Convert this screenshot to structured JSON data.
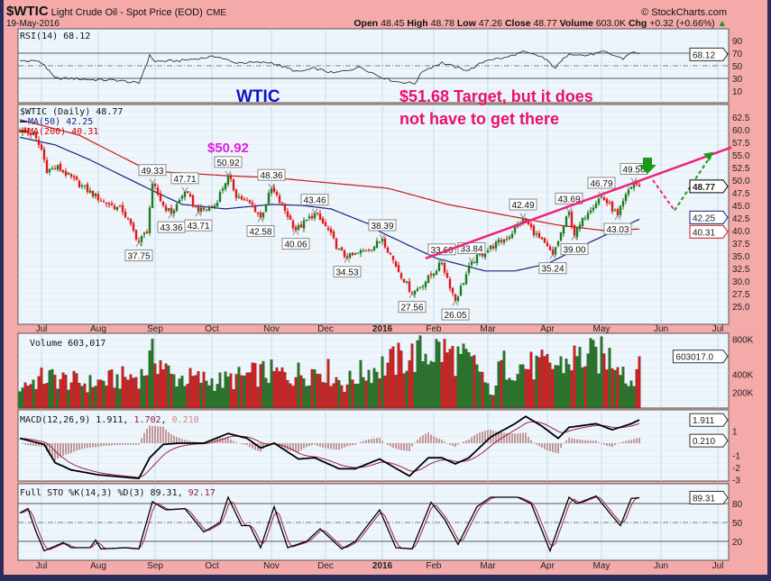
{
  "header": {
    "symbol": "$WTIC",
    "name": "Light Crude Oil - Spot Price (EOD)",
    "exchange": "CME",
    "date": "19-May-2016",
    "brand": "© StockCharts.com",
    "open_label": "Open",
    "open": "48.45",
    "high_label": "High",
    "high": "48.78",
    "low_label": "Low",
    "low": "47.26",
    "close_label": "Close",
    "close": "48.77",
    "volume_label": "Volume",
    "volume": "603.0K",
    "chg_label": "Chg",
    "chg": "+0.32 (+0.66%)",
    "chg_arrow": "▲"
  },
  "annotations": {
    "wtic": "WTIC",
    "target_line1": "$51.68 Target, but it does",
    "target_line2": "not have to get there",
    "peak": "$50.92",
    "colors": {
      "wtic": "#0a14c8",
      "target": "#e8106e",
      "peak": "#e020e0",
      "trendline": "#f0207a",
      "green_arrow": "#1a9a1a"
    }
  },
  "chart_data": {
    "type": "candlestick",
    "months": [
      {
        "label": "Jul",
        "i": 8
      },
      {
        "label": "Aug",
        "i": 29
      },
      {
        "label": "Sep",
        "i": 50
      },
      {
        "label": "Oct",
        "i": 71
      },
      {
        "label": "Nov",
        "i": 93
      },
      {
        "label": "Dec",
        "i": 113
      },
      {
        "label": "2016",
        "i": 134,
        "bold": true
      },
      {
        "label": "Feb",
        "i": 153
      },
      {
        "label": "Mar",
        "i": 173
      },
      {
        "label": "Apr",
        "i": 195
      },
      {
        "label": "May",
        "i": 215
      },
      {
        "label": "Jun",
        "i": 237
      },
      {
        "label": "Jul",
        "i": 258
      }
    ],
    "bars": 230,
    "rsi": {
      "label": "RSI(14) 68.12",
      "value": "68.12",
      "ticks": [
        "90",
        "70",
        "50",
        "30",
        "10"
      ],
      "points": [
        [
          0,
          58
        ],
        [
          6,
          58
        ],
        [
          9,
          52
        ],
        [
          11,
          40
        ],
        [
          13,
          30
        ],
        [
          19,
          30
        ],
        [
          26,
          28
        ],
        [
          36,
          27
        ],
        [
          44,
          22
        ],
        [
          48,
          66
        ],
        [
          50,
          57
        ],
        [
          59,
          58
        ],
        [
          73,
          65
        ],
        [
          79,
          55
        ],
        [
          93,
          55
        ],
        [
          103,
          40
        ],
        [
          109,
          46
        ],
        [
          116,
          38
        ],
        [
          126,
          48
        ],
        [
          133,
          33
        ],
        [
          139,
          25
        ],
        [
          146,
          22
        ],
        [
          149,
          42
        ],
        [
          156,
          55
        ],
        [
          163,
          45
        ],
        [
          166,
          43
        ],
        [
          173,
          60
        ],
        [
          179,
          62
        ],
        [
          186,
          72
        ],
        [
          193,
          64
        ],
        [
          198,
          47
        ],
        [
          203,
          70
        ],
        [
          209,
          66
        ],
        [
          216,
          72
        ],
        [
          223,
          61
        ],
        [
          226,
          72
        ],
        [
          229,
          68.12
        ]
      ]
    },
    "price": {
      "legend": "$WTIC (Daily) 48.77",
      "ma50_label": "MA(50) 42.25",
      "ma200_label": "MA(200) 40.31",
      "last": "48.77",
      "ma50_last": "42.25",
      "ma200_last": "40.31",
      "ticks": [
        "62.5",
        "60.0",
        "57.5",
        "55.0",
        "52.5",
        "50.0",
        "47.5",
        "45.0",
        "42.5",
        "40.0",
        "37.5",
        "35.0",
        "32.5",
        "30.0",
        "27.5",
        "25.0"
      ],
      "path": [
        [
          0,
          60
        ],
        [
          5,
          59
        ],
        [
          8,
          56
        ],
        [
          10,
          52
        ],
        [
          14,
          52.5
        ],
        [
          20,
          50
        ],
        [
          30,
          46
        ],
        [
          38,
          44
        ],
        [
          44,
          37.75
        ],
        [
          47,
          40
        ],
        [
          49,
          49.33
        ],
        [
          53,
          45
        ],
        [
          56,
          43.36
        ],
        [
          61,
          47.71
        ],
        [
          66,
          43.71
        ],
        [
          72,
          45
        ],
        [
          77,
          50.92
        ],
        [
          80,
          47
        ],
        [
          86,
          45
        ],
        [
          89,
          42.58
        ],
        [
          93,
          48.36
        ],
        [
          98,
          44
        ],
        [
          102,
          40.06
        ],
        [
          106,
          42
        ],
        [
          109,
          43.46
        ],
        [
          114,
          40
        ],
        [
          118,
          36
        ],
        [
          121,
          34.53
        ],
        [
          127,
          36
        ],
        [
          131,
          37
        ],
        [
          134,
          38.39
        ],
        [
          140,
          32
        ],
        [
          145,
          27.56
        ],
        [
          150,
          30
        ],
        [
          156,
          33.6
        ],
        [
          161,
          26.05
        ],
        [
          164,
          30
        ],
        [
          167,
          33.84
        ],
        [
          175,
          37
        ],
        [
          181,
          39
        ],
        [
          186,
          42.49
        ],
        [
          191,
          39
        ],
        [
          197,
          35.24
        ],
        [
          203,
          43.69
        ],
        [
          205,
          39
        ],
        [
          210,
          44
        ],
        [
          215,
          46.79
        ],
        [
          221,
          43.03
        ],
        [
          225,
          48
        ],
        [
          227,
          49.56
        ],
        [
          229,
          48.77
        ]
      ],
      "ma50": [
        [
          0,
          58.5
        ],
        [
          13,
          57
        ],
        [
          26,
          54
        ],
        [
          48,
          48.2
        ],
        [
          60,
          45.2
        ],
        [
          76,
          44.3
        ],
        [
          93,
          45.2
        ],
        [
          104,
          45
        ],
        [
          115,
          44.3
        ],
        [
          130,
          41.1
        ],
        [
          133,
          39.8
        ],
        [
          154,
          34.5
        ],
        [
          172,
          32
        ],
        [
          183,
          32
        ],
        [
          195,
          33.4
        ],
        [
          210,
          37.5
        ],
        [
          222,
          40.5
        ],
        [
          229,
          42.25
        ]
      ],
      "ma200": [
        [
          0,
          62
        ],
        [
          22,
          58.9
        ],
        [
          48,
          51.8
        ],
        [
          76,
          50.9
        ],
        [
          93,
          50.5
        ],
        [
          136,
          48.4
        ],
        [
          158,
          45.2
        ],
        [
          199,
          41.1
        ],
        [
          216,
          40
        ],
        [
          229,
          40.31
        ]
      ],
      "pivots": [
        {
          "i": 44,
          "v": "37.75",
          "t": "low"
        },
        {
          "i": 49,
          "v": "49.33",
          "t": "high"
        },
        {
          "i": 56,
          "v": "43.36",
          "t": "low"
        },
        {
          "i": 61,
          "v": "47.71",
          "t": "high"
        },
        {
          "i": 66,
          "v": "43.71",
          "t": "low"
        },
        {
          "i": 77,
          "v": "50.92",
          "t": "high"
        },
        {
          "i": 89,
          "v": "42.58",
          "t": "low"
        },
        {
          "i": 93,
          "v": "48.36",
          "t": "high"
        },
        {
          "i": 102,
          "v": "40.06",
          "t": "low"
        },
        {
          "i": 109,
          "v": "43.46",
          "t": "high"
        },
        {
          "i": 121,
          "v": "34.53",
          "t": "low"
        },
        {
          "i": 134,
          "v": "38.39",
          "t": "high"
        },
        {
          "i": 145,
          "v": "27.56",
          "t": "low"
        },
        {
          "i": 156,
          "v": "33.60",
          "t": "high"
        },
        {
          "i": 161,
          "v": "26.05",
          "t": "low"
        },
        {
          "i": 167,
          "v": "33.84",
          "t": "high"
        },
        {
          "i": 186,
          "v": "42.49",
          "t": "high"
        },
        {
          "i": 197,
          "v": "35.24",
          "t": "low"
        },
        {
          "i": 203,
          "v": "43.69",
          "t": "high"
        },
        {
          "i": 205,
          "v": "39.00",
          "t": "low"
        },
        {
          "i": 215,
          "v": "46.79",
          "t": "high"
        },
        {
          "i": 221,
          "v": "43.03",
          "t": "low"
        },
        {
          "i": 227,
          "v": "49.56",
          "t": "high"
        }
      ],
      "trendline": [
        [
          150,
          34.5
        ],
        [
          263,
          56.5
        ]
      ],
      "projection_down": [
        [
          234,
          50
        ],
        [
          242,
          44
        ]
      ],
      "projection_up": [
        [
          242,
          44
        ],
        [
          255,
          54.5
        ]
      ]
    },
    "volume": {
      "label": "Volume 603,017",
      "value": "603017.0",
      "ticks": [
        "800K",
        "400K",
        "200K"
      ],
      "level": [
        [
          0,
          280000
        ],
        [
          10,
          380000
        ],
        [
          25,
          300000
        ],
        [
          45,
          400000
        ],
        [
          50,
          650000
        ],
        [
          56,
          380000
        ],
        [
          75,
          330000
        ],
        [
          90,
          430000
        ],
        [
          100,
          400000
        ],
        [
          112,
          480000
        ],
        [
          120,
          300000
        ],
        [
          126,
          420000
        ],
        [
          135,
          520000
        ],
        [
          145,
          620000
        ],
        [
          155,
          700000
        ],
        [
          165,
          560000
        ],
        [
          170,
          480000
        ],
        [
          174,
          150000
        ],
        [
          178,
          520000
        ],
        [
          190,
          500000
        ],
        [
          200,
          520000
        ],
        [
          205,
          600000
        ],
        [
          215,
          620000
        ],
        [
          222,
          600000
        ],
        [
          225,
          280000
        ],
        [
          229,
          603017
        ]
      ]
    },
    "macd": {
      "label": "MACD(12,26,9) 1.911, ",
      "signal_value": "1.702",
      "hist_value": "0.210",
      "value": "1.911",
      "ticks": [
        "1",
        "-1",
        "-2",
        "-3"
      ],
      "points": [
        [
          0,
          0.4
        ],
        [
          9,
          -0.1
        ],
        [
          13,
          -1.6
        ],
        [
          19,
          -2.2
        ],
        [
          29,
          -2.6
        ],
        [
          44,
          -2.9
        ],
        [
          48,
          -1.2
        ],
        [
          53,
          -0.1
        ],
        [
          59,
          0
        ],
        [
          68,
          0
        ],
        [
          77,
          0.8
        ],
        [
          84,
          0.4
        ],
        [
          89,
          -0.4
        ],
        [
          94,
          0
        ],
        [
          103,
          -1.3
        ],
        [
          109,
          -1.2
        ],
        [
          118,
          -2.1
        ],
        [
          124,
          -2.1
        ],
        [
          133,
          -1.3
        ],
        [
          144,
          -2.7
        ],
        [
          151,
          -1.2
        ],
        [
          156,
          -1.2
        ],
        [
          161,
          -1.7
        ],
        [
          166,
          -1.2
        ],
        [
          174,
          0.5
        ],
        [
          183,
          1.6
        ],
        [
          187,
          2.2
        ],
        [
          193,
          1.4
        ],
        [
          199,
          0.4
        ],
        [
          203,
          1.3
        ],
        [
          213,
          1.6
        ],
        [
          219,
          1.1
        ],
        [
          226,
          1.6
        ],
        [
          229,
          1.911
        ]
      ]
    },
    "sto": {
      "label": "Full STO %K(14,3) %D(3) 89.31, ",
      "d_value": "92.17",
      "value": "89.31",
      "ticks": [
        "80",
        "50",
        "20"
      ],
      "points": [
        [
          0,
          65
        ],
        [
          3,
          72
        ],
        [
          6,
          35
        ],
        [
          9,
          5
        ],
        [
          16,
          18
        ],
        [
          19,
          10
        ],
        [
          26,
          10
        ],
        [
          28,
          22
        ],
        [
          30,
          8
        ],
        [
          39,
          10
        ],
        [
          44,
          8
        ],
        [
          49,
          83
        ],
        [
          54,
          70
        ],
        [
          61,
          72
        ],
        [
          68,
          35
        ],
        [
          74,
          50
        ],
        [
          77,
          90
        ],
        [
          82,
          45
        ],
        [
          85,
          45
        ],
        [
          89,
          10
        ],
        [
          94,
          75
        ],
        [
          99,
          10
        ],
        [
          106,
          20
        ],
        [
          111,
          40
        ],
        [
          119,
          8
        ],
        [
          124,
          20
        ],
        [
          133,
          70
        ],
        [
          139,
          10
        ],
        [
          145,
          8
        ],
        [
          152,
          82
        ],
        [
          157,
          55
        ],
        [
          162,
          15
        ],
        [
          169,
          75
        ],
        [
          174,
          90
        ],
        [
          184,
          90
        ],
        [
          189,
          80
        ],
        [
          196,
          5
        ],
        [
          203,
          90
        ],
        [
          206,
          80
        ],
        [
          213,
          92
        ],
        [
          219,
          60
        ],
        [
          222,
          45
        ],
        [
          226,
          88
        ],
        [
          229,
          89.31
        ]
      ]
    }
  }
}
